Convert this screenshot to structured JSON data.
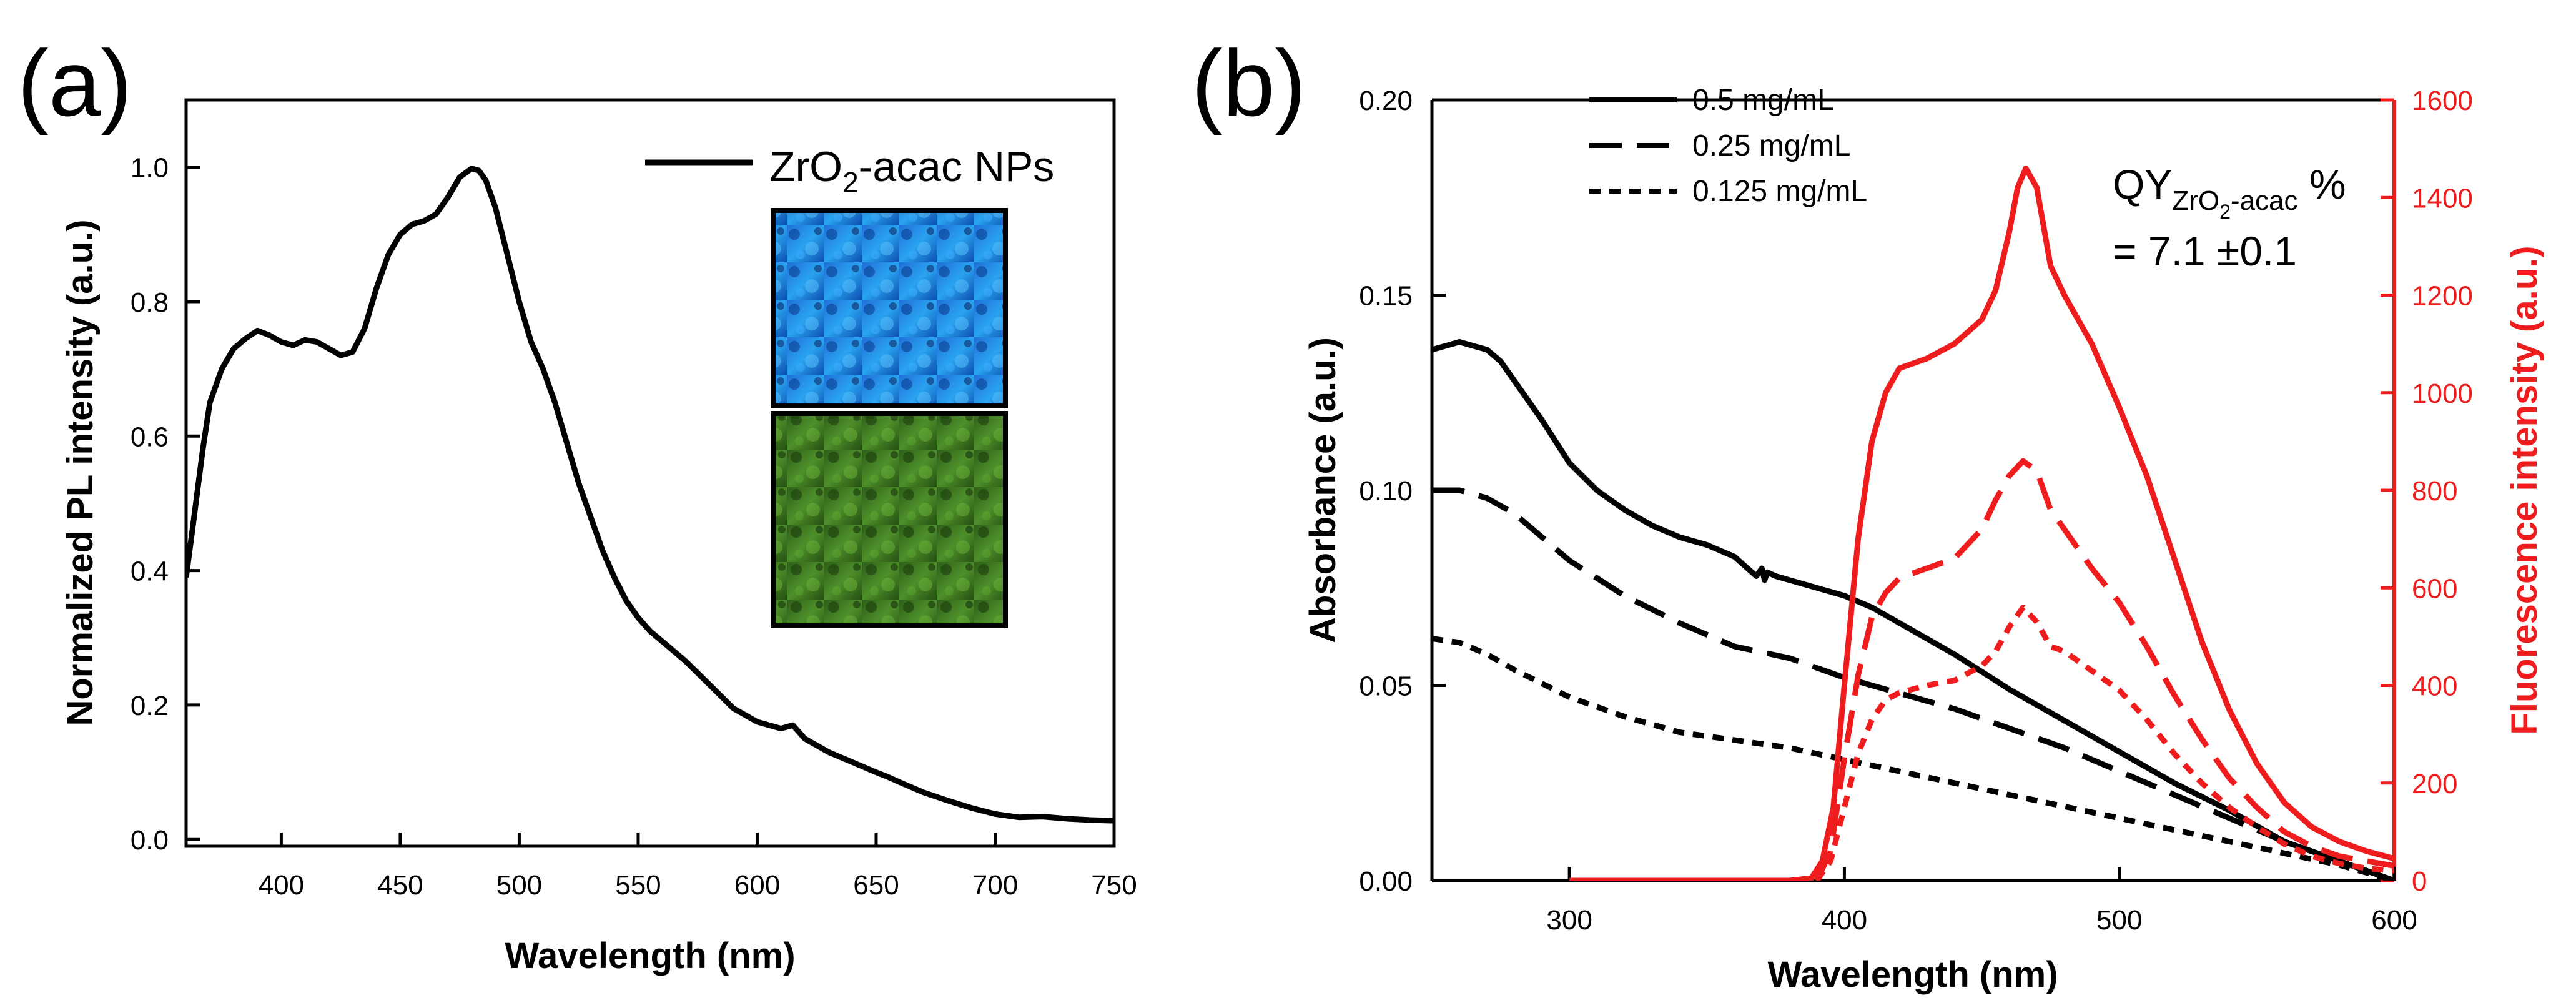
{
  "chart_data": [
    {
      "panel": "(a)",
      "type": "line",
      "title": "",
      "xlabel": "Wavelength (nm)",
      "ylabel": "Normalized PL intensity (a.u.)",
      "xlim": [
        360,
        750
      ],
      "ylim": [
        -0.01,
        1.1
      ],
      "xticks": [
        400,
        450,
        500,
        550,
        600,
        650,
        700,
        750
      ],
      "yticks": [
        0.0,
        0.2,
        0.4,
        0.6,
        0.8,
        1.0
      ],
      "ytick_labels": [
        "0.0",
        "0.2",
        "0.4",
        "0.6",
        "0.8",
        "1.0"
      ],
      "legend": {
        "prefix": "ZrO",
        "sub": "2",
        "suffix": "-acac NPs",
        "position": "top-right"
      },
      "series": [
        {
          "name": "ZrO2-acac NPs",
          "color": "#000000",
          "style": "solid",
          "x": [
            360,
            363,
            367,
            370,
            375,
            380,
            385,
            390,
            395,
            400,
            405,
            410,
            415,
            420,
            425,
            430,
            435,
            440,
            445,
            450,
            455,
            460,
            465,
            470,
            475,
            480,
            483,
            486,
            490,
            495,
            500,
            505,
            510,
            515,
            520,
            525,
            530,
            535,
            540,
            545,
            550,
            555,
            560,
            570,
            580,
            590,
            600,
            610,
            615,
            620,
            630,
            640,
            650,
            655,
            660,
            670,
            680,
            690,
            700,
            710,
            720,
            730,
            740,
            750
          ],
          "y": [
            0.39,
            0.47,
            0.58,
            0.65,
            0.7,
            0.73,
            0.745,
            0.757,
            0.75,
            0.74,
            0.735,
            0.743,
            0.74,
            0.73,
            0.72,
            0.725,
            0.76,
            0.82,
            0.87,
            0.9,
            0.915,
            0.92,
            0.93,
            0.955,
            0.985,
            0.998,
            0.995,
            0.98,
            0.94,
            0.87,
            0.8,
            0.74,
            0.7,
            0.65,
            0.59,
            0.53,
            0.48,
            0.43,
            0.39,
            0.355,
            0.33,
            0.31,
            0.295,
            0.265,
            0.23,
            0.195,
            0.175,
            0.165,
            0.17,
            0.15,
            0.13,
            0.115,
            0.1,
            0.093,
            0.085,
            0.07,
            0.058,
            0.047,
            0.038,
            0.033,
            0.034,
            0.031,
            0.029,
            0.028
          ]
        }
      ],
      "inset": {
        "images": [
          "blue fluorescence micrograph",
          "green fluorescence micrograph"
        ]
      }
    },
    {
      "panel": "(b)",
      "type": "line",
      "title": "",
      "xlabel": "Wavelength (nm)",
      "ylabel": "Absorbance (a.u.)",
      "ylabel_right": "Fluorescence intensity (a.u.)",
      "xlim": [
        250,
        600
      ],
      "ylim": [
        0,
        0.2
      ],
      "ylim_right": [
        0,
        1600
      ],
      "xticks": [
        300,
        400,
        500,
        600
      ],
      "yticks": [
        0.0,
        0.05,
        0.1,
        0.15,
        0.2
      ],
      "ytick_labels": [
        "0.00",
        "0.05",
        "0.10",
        "0.15",
        "0.20"
      ],
      "yticks_right": [
        0,
        200,
        400,
        600,
        800,
        1000,
        1200,
        1400,
        1600
      ],
      "legend": [
        {
          "label": "0.5 mg/mL",
          "style": "solid"
        },
        {
          "label": "0.25 mg/mL",
          "style": "dashed"
        },
        {
          "label": "0.125 mg/mL",
          "style": "dotted"
        }
      ],
      "annotation": {
        "qy_prefix": "QY",
        "qy_sub_pre": "ZrO",
        "qy_sub_num": "2",
        "qy_sub_post": "-acac",
        "qy_pct": " %",
        "qy_value": "= 7.1 ±0.1"
      },
      "series": [
        {
          "name": "0.5 mg/mL absorbance",
          "axis": "left",
          "color": "#000000",
          "style": "solid",
          "x": [
            250,
            255,
            260,
            265,
            270,
            275,
            280,
            290,
            300,
            310,
            320,
            330,
            340,
            350,
            360,
            368,
            370,
            371,
            372,
            375,
            380,
            390,
            400,
            410,
            420,
            440,
            460,
            480,
            500,
            520,
            540,
            560,
            580,
            600
          ],
          "y": [
            0.136,
            0.137,
            0.138,
            0.137,
            0.136,
            0.133,
            0.128,
            0.118,
            0.107,
            0.1,
            0.095,
            0.091,
            0.088,
            0.086,
            0.083,
            0.078,
            0.08,
            0.077,
            0.079,
            0.078,
            0.077,
            0.075,
            0.073,
            0.07,
            0.066,
            0.058,
            0.049,
            0.041,
            0.033,
            0.025,
            0.018,
            0.01,
            0.005,
            0.0
          ]
        },
        {
          "name": "0.25 mg/mL absorbance",
          "axis": "left",
          "color": "#000000",
          "style": "dashed",
          "x": [
            250,
            260,
            270,
            280,
            290,
            300,
            320,
            340,
            360,
            380,
            400,
            420,
            440,
            460,
            480,
            500,
            520,
            540,
            560,
            580,
            600
          ],
          "y": [
            0.1,
            0.1,
            0.098,
            0.094,
            0.088,
            0.082,
            0.073,
            0.066,
            0.06,
            0.057,
            0.052,
            0.048,
            0.044,
            0.039,
            0.034,
            0.028,
            0.022,
            0.016,
            0.01,
            0.005,
            0.0
          ]
        },
        {
          "name": "0.125 mg/mL absorbance",
          "axis": "left",
          "color": "#000000",
          "style": "dotted",
          "x": [
            250,
            260,
            270,
            280,
            300,
            320,
            340,
            360,
            370,
            380,
            400,
            420,
            440,
            460,
            480,
            500,
            520,
            540,
            560,
            580,
            600
          ],
          "y": [
            0.062,
            0.061,
            0.058,
            0.054,
            0.047,
            0.042,
            0.038,
            0.036,
            0.035,
            0.034,
            0.031,
            0.028,
            0.025,
            0.022,
            0.019,
            0.016,
            0.013,
            0.01,
            0.007,
            0.004,
            0.0
          ]
        },
        {
          "name": "0.5 mg/mL fluorescence",
          "axis": "right",
          "color": "#ee1c1c",
          "style": "solid",
          "x": [
            300,
            320,
            340,
            360,
            380,
            388,
            392,
            396,
            400,
            405,
            410,
            415,
            420,
            430,
            440,
            450,
            455,
            460,
            463,
            466,
            470,
            475,
            480,
            490,
            500,
            510,
            520,
            530,
            540,
            550,
            560,
            570,
            580,
            590,
            600
          ],
          "y": [
            0,
            0,
            0,
            0,
            0,
            5,
            40,
            150,
            400,
            700,
            900,
            1000,
            1050,
            1070,
            1100,
            1150,
            1210,
            1330,
            1420,
            1460,
            1420,
            1260,
            1200,
            1100,
            970,
            830,
            660,
            490,
            350,
            240,
            160,
            110,
            80,
            60,
            45
          ]
        },
        {
          "name": "0.25 mg/mL fluorescence",
          "axis": "right",
          "color": "#ee1c1c",
          "style": "dashed",
          "x": [
            390,
            395,
            400,
            405,
            410,
            415,
            420,
            430,
            440,
            450,
            455,
            460,
            465,
            470,
            475,
            480,
            490,
            500,
            510,
            520,
            530,
            540,
            550,
            560,
            570,
            580,
            590,
            600
          ],
          "y": [
            0,
            60,
            250,
            420,
            540,
            590,
            620,
            640,
            660,
            720,
            780,
            830,
            860,
            840,
            760,
            720,
            640,
            570,
            480,
            380,
            290,
            210,
            150,
            100,
            70,
            50,
            40,
            30
          ]
        },
        {
          "name": "0.125 mg/mL fluorescence",
          "axis": "right",
          "color": "#ee1c1c",
          "style": "dotted",
          "x": [
            390,
            395,
            400,
            405,
            410,
            415,
            420,
            430,
            440,
            450,
            455,
            460,
            465,
            470,
            475,
            480,
            490,
            500,
            510,
            520,
            530,
            540,
            550,
            560,
            570,
            580,
            590,
            600
          ],
          "y": [
            0,
            40,
            150,
            260,
            330,
            370,
            385,
            400,
            410,
            440,
            470,
            520,
            560,
            530,
            480,
            470,
            430,
            390,
            330,
            260,
            200,
            150,
            110,
            75,
            50,
            35,
            25,
            20
          ]
        }
      ]
    }
  ]
}
